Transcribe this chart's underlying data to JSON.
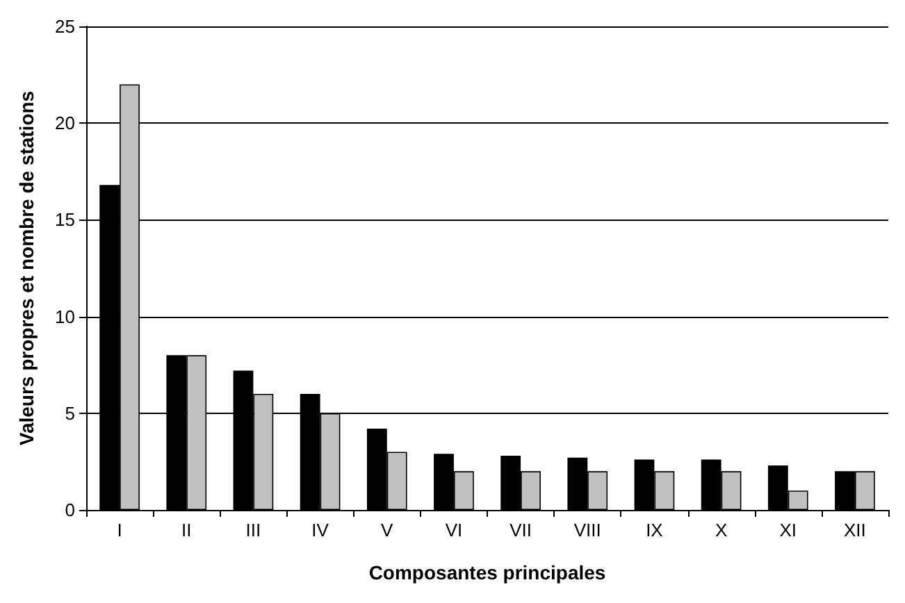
{
  "chart_data": {
    "type": "bar",
    "xlabel": "Composantes principales",
    "ylabel": "Valeurs propres et nombre de stations",
    "categories": [
      "I",
      "II",
      "III",
      "IV",
      "V",
      "VI",
      "VII",
      "VIII",
      "IX",
      "X",
      "XI",
      "XII"
    ],
    "series": [
      {
        "color": "#000000",
        "values": [
          16.8,
          8.0,
          7.2,
          6.0,
          4.2,
          2.9,
          2.8,
          2.7,
          2.6,
          2.6,
          2.3,
          2.0
        ]
      },
      {
        "color": "#c0c0c0",
        "values": [
          22,
          8,
          6,
          5,
          3,
          2,
          2,
          2,
          2,
          2,
          1,
          2
        ]
      }
    ],
    "ylim": [
      0,
      25
    ],
    "yticks": [
      0,
      5,
      10,
      15,
      20,
      25
    ],
    "grid": "y"
  }
}
